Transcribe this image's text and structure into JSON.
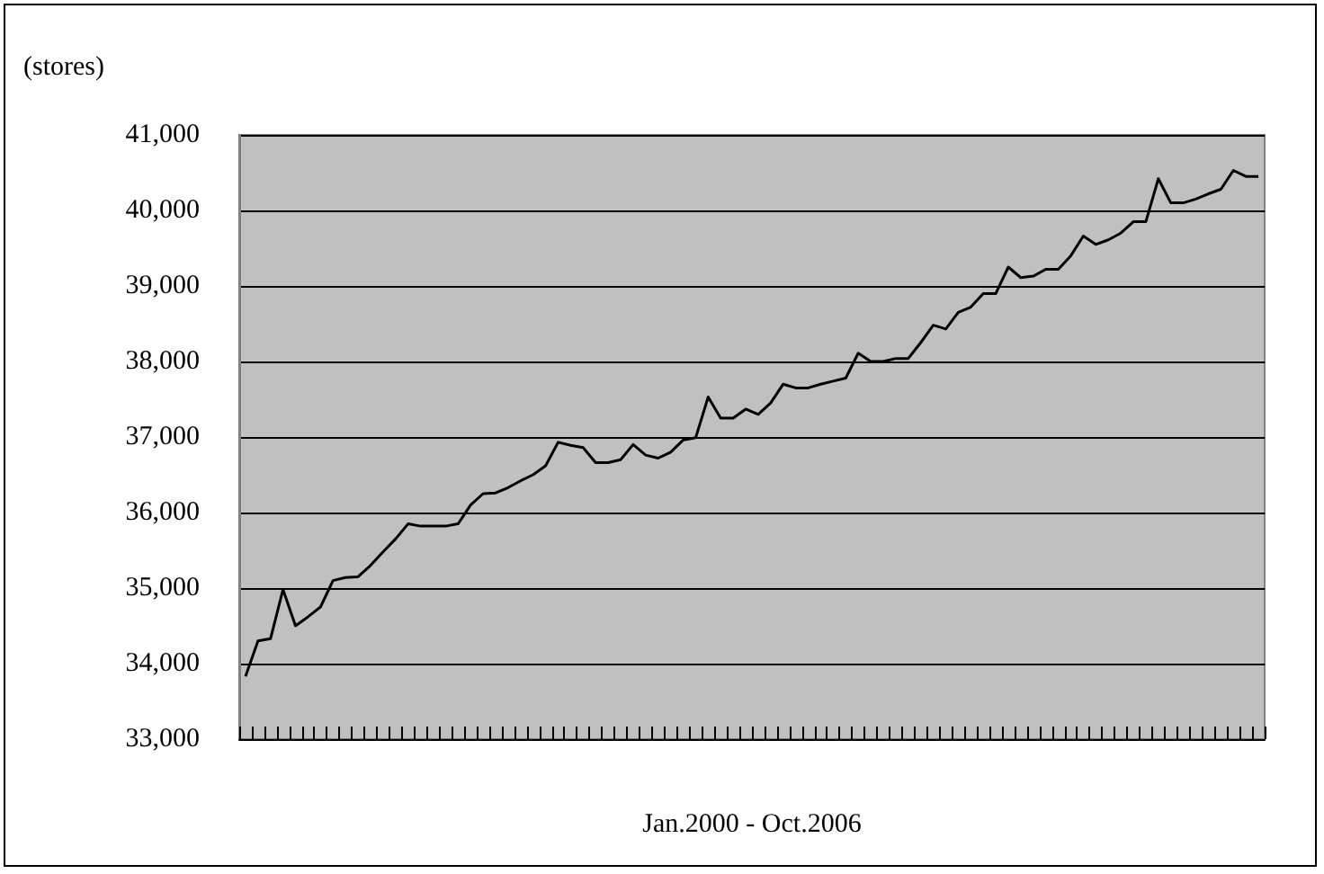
{
  "chart_data": {
    "type": "line",
    "xlabel": "Jan.2000 - Oct.2006",
    "ylabel": "(stores)",
    "categories": [
      null,
      null,
      null,
      null,
      null,
      null,
      null,
      null,
      null,
      null,
      null,
      null,
      null,
      null,
      null,
      null,
      null,
      null,
      null,
      null,
      null,
      null,
      null,
      null,
      null,
      null,
      null,
      null,
      null,
      null,
      null,
      null,
      null,
      null,
      null,
      null,
      null,
      null,
      null,
      null,
      null,
      null,
      null,
      null,
      null,
      null,
      null,
      null,
      null,
      null,
      null,
      null,
      null,
      null,
      null,
      null,
      null,
      null,
      null,
      null,
      null,
      null,
      null,
      null,
      null,
      null,
      null,
      null,
      null,
      null,
      null,
      null,
      null,
      null,
      null,
      null,
      null,
      null,
      null,
      null,
      null,
      null
    ],
    "series": [
      {
        "color": "#000000",
        "values": [
          33830,
          34300,
          34330,
          34980,
          34500,
          34620,
          34750,
          35100,
          35140,
          35150,
          35300,
          35480,
          35650,
          35850,
          35820,
          35820,
          35820,
          35850,
          36100,
          36250,
          36260,
          36330,
          36420,
          36500,
          36620,
          36930,
          36890,
          36860,
          36660,
          36660,
          36700,
          36900,
          36760,
          36720,
          36800,
          36960,
          36990,
          37530,
          37250,
          37250,
          37370,
          37300,
          37450,
          37700,
          37650,
          37650,
          37700,
          37740,
          37780,
          38110,
          38000,
          38000,
          38040,
          38040,
          38250,
          38480,
          38430,
          38650,
          38720,
          38900,
          38900,
          39250,
          39110,
          39130,
          39220,
          39220,
          39400,
          39660,
          39550,
          39610,
          39700,
          39850,
          39850,
          40420,
          40100,
          40100,
          40150,
          40220,
          40280,
          40530,
          40450,
          40450
        ]
      }
    ],
    "ylim": [
      33000,
      41000
    ],
    "yticks": [
      {
        "value": 33000,
        "label": "33,000"
      },
      {
        "value": 34000,
        "label": "34,000"
      },
      {
        "value": 35000,
        "label": "35,000"
      },
      {
        "value": 36000,
        "label": "36,000"
      },
      {
        "value": 37000,
        "label": "37,000"
      },
      {
        "value": 38000,
        "label": "38,000"
      },
      {
        "value": 39000,
        "label": "39,000"
      },
      {
        "value": 40000,
        "label": "40,000"
      },
      {
        "value": 41000,
        "label": "41,000"
      }
    ],
    "grid": "y",
    "marker": "none",
    "line_style": "solid"
  }
}
